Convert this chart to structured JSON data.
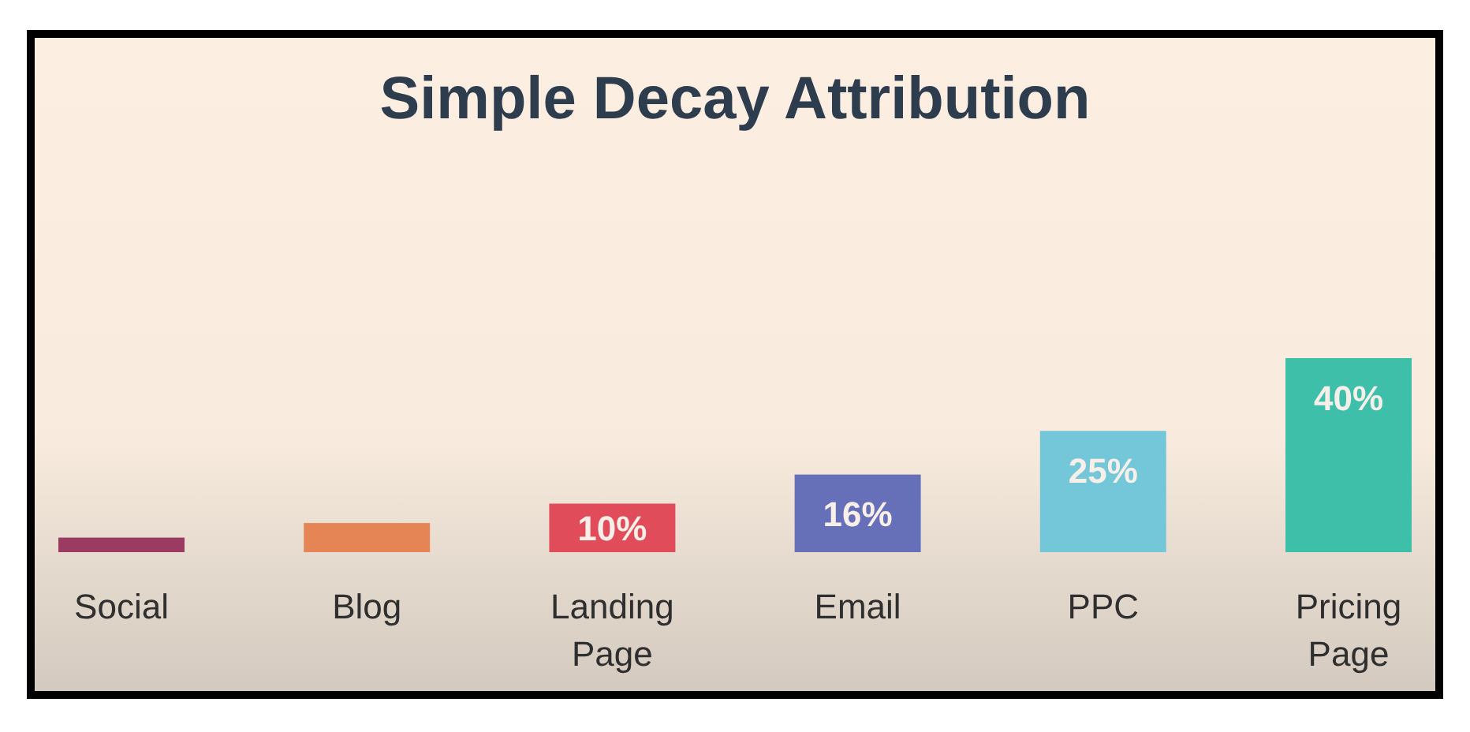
{
  "chart_data": {
    "type": "bar",
    "title": "Simple Decay Attribution",
    "categories": [
      "Social",
      "Blog",
      "Landing Page",
      "Email",
      "PPC",
      "Pricing Page"
    ],
    "values": [
      3,
      6,
      10,
      16,
      25,
      40
    ],
    "colors": [
      "#9b3b62",
      "#e58556",
      "#e04c5a",
      "#6670b8",
      "#74c7d8",
      "#3dbfaa"
    ],
    "value_labels": [
      null,
      null,
      "10%",
      "16%",
      "25%",
      "40%"
    ]
  }
}
